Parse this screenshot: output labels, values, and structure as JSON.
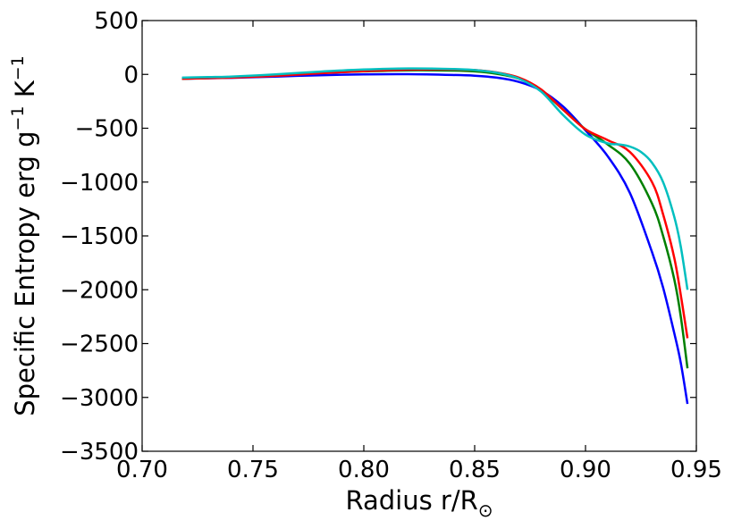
{
  "chart_data": {
    "type": "line",
    "xlabel": "Radius r/R",
    "xlabel_sub": "⊙",
    "ylabel_parts": [
      "Specific Entropy erg g",
      "−1",
      " K",
      "−1"
    ],
    "xlim": [
      0.7,
      0.95
    ],
    "ylim": [
      -3500,
      500
    ],
    "xticks": [
      0.7,
      0.75,
      0.8,
      0.85,
      0.9,
      0.95
    ],
    "xtick_labels": [
      "0.70",
      "0.75",
      "0.80",
      "0.85",
      "0.90",
      "0.95"
    ],
    "yticks": [
      500,
      0,
      -500,
      -1000,
      -1500,
      -2000,
      -2500,
      -3000,
      -3500
    ],
    "ytick_labels": [
      "500",
      "0",
      "−500",
      "−1000",
      "−1500",
      "−2000",
      "−2500",
      "−3000",
      "−3500"
    ],
    "grid": false,
    "series": [
      {
        "color": "#0000ff",
        "points": [
          [
            0.718,
            -40
          ],
          [
            0.74,
            -32
          ],
          [
            0.76,
            -20
          ],
          [
            0.78,
            -8
          ],
          [
            0.8,
            0
          ],
          [
            0.82,
            2
          ],
          [
            0.84,
            -5
          ],
          [
            0.85,
            -12
          ],
          [
            0.86,
            -30
          ],
          [
            0.87,
            -70
          ],
          [
            0.88,
            -150
          ],
          [
            0.89,
            -300
          ],
          [
            0.9,
            -520
          ],
          [
            0.91,
            -760
          ],
          [
            0.92,
            -1100
          ],
          [
            0.93,
            -1650
          ],
          [
            0.935,
            -1980
          ],
          [
            0.94,
            -2400
          ],
          [
            0.943,
            -2680
          ],
          [
            0.946,
            -3060
          ]
        ]
      },
      {
        "color": "#008000",
        "points": [
          [
            0.718,
            -40
          ],
          [
            0.74,
            -28
          ],
          [
            0.76,
            -10
          ],
          [
            0.78,
            12
          ],
          [
            0.8,
            28
          ],
          [
            0.82,
            38
          ],
          [
            0.84,
            35
          ],
          [
            0.85,
            28
          ],
          [
            0.86,
            5
          ],
          [
            0.87,
            -40
          ],
          [
            0.88,
            -150
          ],
          [
            0.89,
            -330
          ],
          [
            0.9,
            -510
          ],
          [
            0.91,
            -650
          ],
          [
            0.92,
            -830
          ],
          [
            0.93,
            -1200
          ],
          [
            0.935,
            -1500
          ],
          [
            0.94,
            -1900
          ],
          [
            0.943,
            -2250
          ],
          [
            0.946,
            -2730
          ]
        ]
      },
      {
        "color": "#ff0000",
        "points": [
          [
            0.718,
            -40
          ],
          [
            0.74,
            -30
          ],
          [
            0.76,
            -14
          ],
          [
            0.78,
            10
          ],
          [
            0.8,
            30
          ],
          [
            0.82,
            44
          ],
          [
            0.84,
            46
          ],
          [
            0.85,
            40
          ],
          [
            0.86,
            18
          ],
          [
            0.87,
            -30
          ],
          [
            0.88,
            -140
          ],
          [
            0.89,
            -330
          ],
          [
            0.9,
            -510
          ],
          [
            0.91,
            -610
          ],
          [
            0.92,
            -720
          ],
          [
            0.93,
            -1000
          ],
          [
            0.935,
            -1300
          ],
          [
            0.94,
            -1700
          ],
          [
            0.943,
            -2050
          ],
          [
            0.946,
            -2450
          ]
        ]
      },
      {
        "color": "#00bfbf",
        "points": [
          [
            0.718,
            -30
          ],
          [
            0.73,
            -25
          ],
          [
            0.74,
            -20
          ],
          [
            0.76,
            0
          ],
          [
            0.78,
            25
          ],
          [
            0.8,
            45
          ],
          [
            0.82,
            55
          ],
          [
            0.84,
            50
          ],
          [
            0.85,
            40
          ],
          [
            0.86,
            15
          ],
          [
            0.87,
            -40
          ],
          [
            0.88,
            -160
          ],
          [
            0.89,
            -380
          ],
          [
            0.9,
            -560
          ],
          [
            0.91,
            -640
          ],
          [
            0.915,
            -650
          ],
          [
            0.92,
            -670
          ],
          [
            0.925,
            -720
          ],
          [
            0.93,
            -820
          ],
          [
            0.935,
            -1000
          ],
          [
            0.94,
            -1320
          ],
          [
            0.943,
            -1600
          ],
          [
            0.946,
            -2000
          ]
        ]
      }
    ]
  }
}
